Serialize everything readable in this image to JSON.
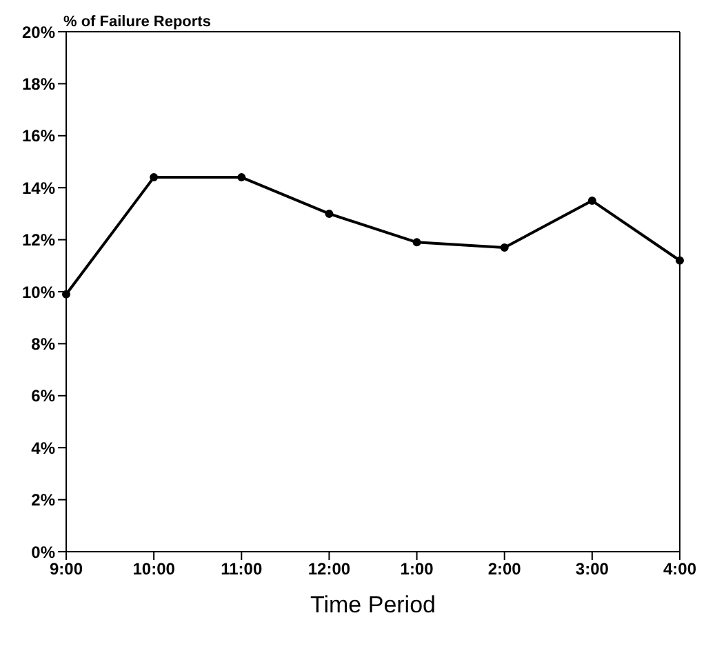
{
  "chart_data": {
    "type": "line",
    "ylabel": "% of Failure Reports",
    "xlabel": "Time Period",
    "categories": [
      "9:00",
      "10:00",
      "11:00",
      "12:00",
      "1:00",
      "2:00",
      "3:00",
      "4:00"
    ],
    "series": [
      {
        "color": "#000000",
        "values": [
          9.9,
          14.4,
          14.4,
          13.0,
          11.9,
          11.7,
          13.5,
          11.2
        ]
      }
    ],
    "ylim": [
      0,
      20
    ],
    "yticks": [
      {
        "value": 0,
        "label": "0%"
      },
      {
        "value": 2,
        "label": "2%"
      },
      {
        "value": 4,
        "label": "4%"
      },
      {
        "value": 6,
        "label": "6%"
      },
      {
        "value": 8,
        "label": "8%"
      },
      {
        "value": 10,
        "label": "10%"
      },
      {
        "value": 12,
        "label": "12%"
      },
      {
        "value": 14,
        "label": "14%"
      },
      {
        "value": 16,
        "label": "16%"
      },
      {
        "value": 18,
        "label": "18%"
      },
      {
        "value": 20,
        "label": "20%"
      }
    ],
    "grid": false,
    "legend": false,
    "marker": "circle",
    "line_style": "solid"
  }
}
